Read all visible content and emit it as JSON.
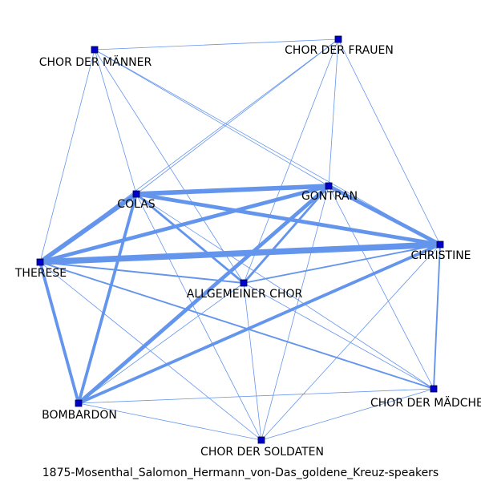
{
  "caption": "1875-Mosenthal_Salomon_Hermann_von-Das_goldene_Kreuz-speakers",
  "colors": {
    "edge": "#6495ED",
    "node": "#0000cc",
    "text": "#000000"
  },
  "nodes": [
    {
      "id": "maenner",
      "label": "CHOR DER MÄNNER"
    },
    {
      "id": "frauen",
      "label": "CHOR DER FRAUEN"
    },
    {
      "id": "colas",
      "label": "COLAS"
    },
    {
      "id": "gontran",
      "label": "GONTRAN"
    },
    {
      "id": "christine",
      "label": "CHRISTINE"
    },
    {
      "id": "therese",
      "label": "THERESE"
    },
    {
      "id": "allgemein",
      "label": "ALLGEMEINER CHOR"
    },
    {
      "id": "bombardon",
      "label": "BOMBARDON"
    },
    {
      "id": "maedchen",
      "label": "CHOR DER MÄDCHEN"
    },
    {
      "id": "soldaten",
      "label": "CHOR DER SOLDATEN"
    }
  ],
  "edges": [
    {
      "source": "maenner",
      "target": "frauen",
      "weight": 1
    },
    {
      "source": "maenner",
      "target": "therese",
      "weight": 1
    },
    {
      "source": "maenner",
      "target": "colas",
      "weight": 1
    },
    {
      "source": "maenner",
      "target": "gontran",
      "weight": 1
    },
    {
      "source": "maenner",
      "target": "christine",
      "weight": 1
    },
    {
      "source": "maenner",
      "target": "allgemein",
      "weight": 1
    },
    {
      "source": "frauen",
      "target": "colas",
      "weight": 1
    },
    {
      "source": "frauen",
      "target": "therese",
      "weight": 1
    },
    {
      "source": "frauen",
      "target": "christine",
      "weight": 1
    },
    {
      "source": "frauen",
      "target": "allgemein",
      "weight": 1
    },
    {
      "source": "frauen",
      "target": "gontran",
      "weight": 1
    },
    {
      "source": "colas",
      "target": "gontran",
      "weight": 6
    },
    {
      "source": "colas",
      "target": "christine",
      "weight": 5
    },
    {
      "source": "colas",
      "target": "therese",
      "weight": 6
    },
    {
      "source": "colas",
      "target": "bombardon",
      "weight": 4
    },
    {
      "source": "colas",
      "target": "allgemein",
      "weight": 3
    },
    {
      "source": "colas",
      "target": "soldaten",
      "weight": 1
    },
    {
      "source": "colas",
      "target": "maedchen",
      "weight": 1
    },
    {
      "source": "gontran",
      "target": "christine",
      "weight": 5
    },
    {
      "source": "gontran",
      "target": "therese",
      "weight": 5
    },
    {
      "source": "gontran",
      "target": "bombardon",
      "weight": 5
    },
    {
      "source": "gontran",
      "target": "allgemein",
      "weight": 3
    },
    {
      "source": "gontran",
      "target": "soldaten",
      "weight": 1
    },
    {
      "source": "gontran",
      "target": "maedchen",
      "weight": 1
    },
    {
      "source": "christine",
      "target": "therese",
      "weight": 8
    },
    {
      "source": "christine",
      "target": "bombardon",
      "weight": 4
    },
    {
      "source": "christine",
      "target": "allgemein",
      "weight": 2
    },
    {
      "source": "christine",
      "target": "maedchen",
      "weight": 2
    },
    {
      "source": "christine",
      "target": "soldaten",
      "weight": 1
    },
    {
      "source": "therese",
      "target": "bombardon",
      "weight": 4
    },
    {
      "source": "therese",
      "target": "allgemein",
      "weight": 2
    },
    {
      "source": "therese",
      "target": "maedchen",
      "weight": 2
    },
    {
      "source": "therese",
      "target": "soldaten",
      "weight": 1
    },
    {
      "source": "allgemein",
      "target": "soldaten",
      "weight": 1
    },
    {
      "source": "allgemein",
      "target": "bombardon",
      "weight": 1
    },
    {
      "source": "allgemein",
      "target": "maedchen",
      "weight": 1
    },
    {
      "source": "bombardon",
      "target": "soldaten",
      "weight": 1
    },
    {
      "source": "bombardon",
      "target": "maedchen",
      "weight": 1
    },
    {
      "source": "soldaten",
      "target": "maedchen",
      "weight": 1
    }
  ]
}
